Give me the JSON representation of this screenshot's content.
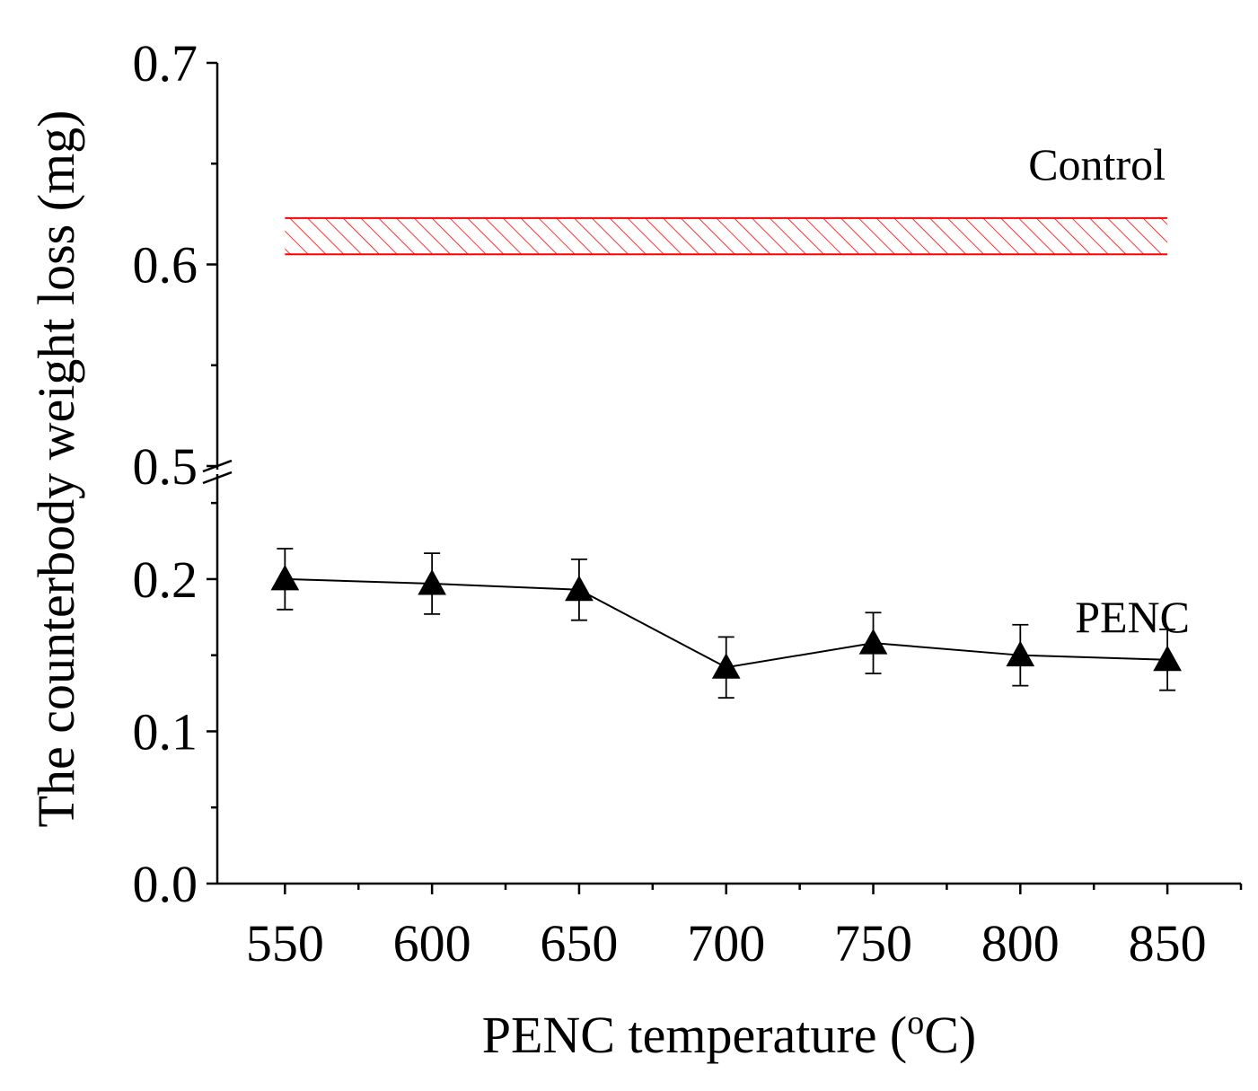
{
  "chart_data": {
    "type": "line",
    "xlabel": "PENC temperature (",
    "xlabel_unit_sup": "o",
    "xlabel_unit_tail": "C)",
    "ylabel": "The counterbody weight loss (mg)",
    "x_ticks": [
      "550",
      "600",
      "650",
      "700",
      "750",
      "800",
      "850"
    ],
    "y_ticks_lower": [
      "0.0",
      "0.1",
      "0.2"
    ],
    "y_ticks_upper": [
      "0.5",
      "0.6",
      "0.7"
    ],
    "ylim_lower": [
      0.0,
      0.2666
    ],
    "ylim_upper": [
      0.5,
      0.7
    ],
    "axis_break": true,
    "xlim": [
      527,
      875
    ],
    "series": [
      {
        "name": "PENC",
        "marker": "triangle",
        "color": "#000000",
        "x": [
          550,
          600,
          650,
          700,
          750,
          800,
          850
        ],
        "y": [
          0.2,
          0.197,
          0.193,
          0.142,
          0.158,
          0.15,
          0.147
        ],
        "error": [
          0.02,
          0.02,
          0.02,
          0.02,
          0.02,
          0.02,
          0.02
        ]
      }
    ],
    "bands": [
      {
        "name": "Control",
        "color": "#ff0000",
        "pattern": "diagonal-hatch",
        "y_low": 0.605,
        "y_high": 0.623,
        "x_start": 550,
        "x_end": 850
      }
    ]
  }
}
